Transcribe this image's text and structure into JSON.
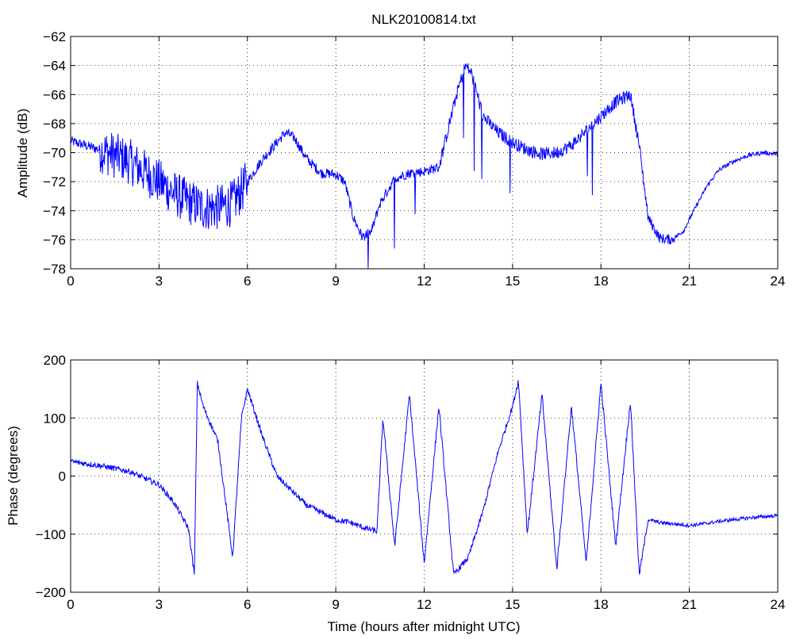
{
  "chart_data": [
    {
      "type": "line",
      "title": "NLK20100814.txt",
      "xlabel": "",
      "ylabel": "Amplitude (dB)",
      "xlim": [
        0,
        24
      ],
      "ylim": [
        -78,
        -62
      ],
      "xticks": [
        "0",
        "3",
        "6",
        "9",
        "12",
        "15",
        "18",
        "21",
        "24"
      ],
      "yticks": [
        "-62",
        "-64",
        "-66",
        "-68",
        "-70",
        "-72",
        "-74",
        "-76",
        "-78"
      ],
      "grid": true,
      "color": "#0000ff",
      "series": [
        {
          "x": [
            0,
            0.5,
            1,
            1.5,
            2,
            2.5,
            3,
            3.5,
            4,
            4.5,
            5,
            5.5,
            6,
            6.5,
            7,
            7.3,
            7.6,
            8,
            8.5,
            9,
            9.3,
            9.6,
            9.9,
            10.2,
            10.5,
            11,
            11.5,
            12,
            12.5,
            12.8,
            13.1,
            13.4,
            13.6,
            14,
            14.5,
            15,
            15.5,
            16,
            16.5,
            17,
            17.5,
            18,
            18.5,
            19,
            19.3,
            19.6,
            20,
            20.4,
            20.8,
            21.2,
            21.6,
            22,
            22.5,
            23,
            23.5,
            24
          ],
          "values": [
            -69.2,
            -69.5,
            -69.8,
            -70.2,
            -70.6,
            -71.3,
            -72.0,
            -72.8,
            -73.4,
            -73.8,
            -73.8,
            -73.5,
            -72.0,
            -70.5,
            -69.3,
            -68.6,
            -69.0,
            -70.4,
            -71.4,
            -71.5,
            -72.0,
            -74.5,
            -75.8,
            -75.5,
            -73.5,
            -71.8,
            -71.4,
            -71.3,
            -71.0,
            -68.5,
            -66.0,
            -64.0,
            -64.5,
            -67.5,
            -68.6,
            -69.3,
            -69.8,
            -70.1,
            -70.0,
            -69.5,
            -68.5,
            -67.5,
            -66.5,
            -66.0,
            -69.5,
            -74.5,
            -75.9,
            -76.0,
            -75.4,
            -73.8,
            -72.3,
            -71.2,
            -70.6,
            -70.2,
            -70.0,
            -70.1
          ]
        }
      ]
    },
    {
      "type": "line",
      "title": "",
      "xlabel": "Time (hours after midnight UTC)",
      "ylabel": "Phase (degrees)",
      "xlim": [
        0,
        24
      ],
      "ylim": [
        -200,
        200
      ],
      "xticks": [
        "0",
        "3",
        "6",
        "9",
        "12",
        "15",
        "18",
        "21",
        "24"
      ],
      "yticks": [
        "200",
        "100",
        "0",
        "-100",
        "-200"
      ],
      "grid": true,
      "color": "#0000ff",
      "series": [
        {
          "x": [
            0,
            1,
            2,
            3,
            3.5,
            4,
            4.2,
            4.3,
            4.5,
            5.0,
            5.5,
            5.8,
            6.0,
            6.5,
            7,
            8,
            9,
            9.5,
            10,
            10.4,
            10.6,
            11,
            11.5,
            12,
            12.5,
            13,
            13.5,
            14,
            14.5,
            15,
            15.2,
            15.5,
            16,
            16.5,
            17,
            17.5,
            18,
            18.5,
            19,
            19.3,
            19.6,
            20,
            21,
            21.5,
            22,
            23,
            24
          ],
          "values": [
            25,
            18,
            8,
            -15,
            -45,
            -90,
            -170,
            160,
            120,
            60,
            -140,
            100,
            150,
            70,
            0,
            -50,
            -75,
            -80,
            -90,
            -95,
            100,
            -120,
            140,
            -150,
            120,
            -170,
            -140,
            -60,
            40,
            120,
            165,
            -100,
            140,
            -160,
            120,
            -150,
            160,
            -120,
            130,
            -170,
            -75,
            -80,
            -85,
            -82,
            -78,
            -72,
            -68
          ]
        }
      ]
    }
  ]
}
